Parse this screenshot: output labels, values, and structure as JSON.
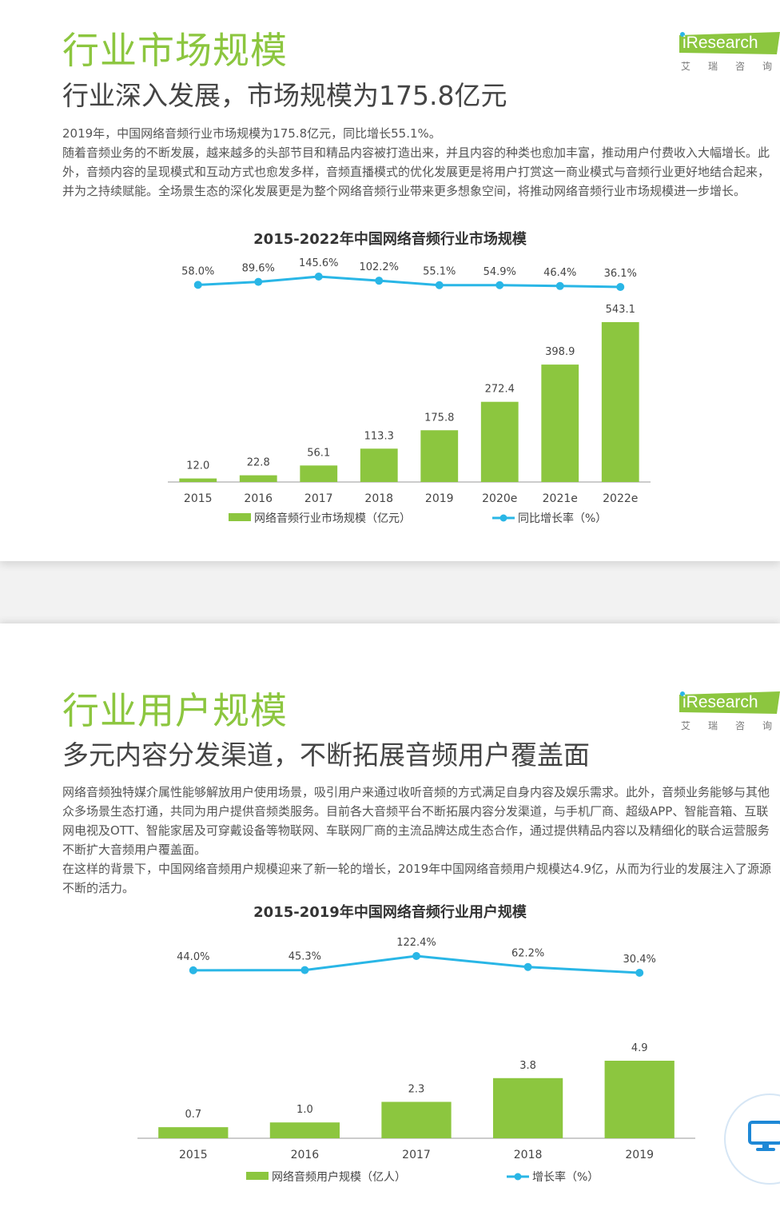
{
  "slide1": {
    "title": "行业市场规模",
    "subtitle": "行业深入发展，市场规模为175.8亿元",
    "paragraphs": [
      "2019年，中国网络音频行业市场规模为175.8亿元，同比增长55.1%。",
      "随着音频业务的不断发展，越来越多的头部节目和精品内容被打造出来，并且内容的种类也愈加丰富，推动用户付费收入大幅增长。此外，音频内容的呈现模式和互动方式也愈发多样，音频直播模式的优化发展更是将用户打赏这一商业模式与音频行业更好地结合起来，并为之持续赋能。全场景生态的深化发展更是为整个网络音频行业带来更多想象空间，将推动网络音频行业市场规模进一步增长。"
    ],
    "logo": {
      "word": "iResearch",
      "cn": "艾瑞咨询"
    }
  },
  "slide2": {
    "title": "行业用户规模",
    "subtitle": "多元内容分发渠道，不断拓展音频用户覆盖面",
    "paragraphs": [
      "网络音频独特媒介属性能够解放用户使用场景，吸引用户来通过收听音频的方式满足自身内容及娱乐需求。此外，音频业务能够与其他众多场景生态打通，共同为用户提供音频类服务。目前各大音频平台不断拓展内容分发渠道，与手机厂商、超级APP、智能音箱、互联网电视及OTT、智能家居及可穿戴设备等物联网、车联网厂商的主流品牌达成生态合作，通过提供精品内容以及精细化的联合运营服务不断扩大音频用户覆盖面。",
      "在这样的背景下，中国网络音频用户规模迎来了新一轮的增长，2019年中国网络音频用户规模达4.9亿，从而为行业的发展注入了源源不断的活力。"
    ],
    "logo": {
      "word": "iResearch",
      "cn": "艾瑞咨询"
    }
  },
  "colors": {
    "bar": "#8cc63f",
    "line": "#29b6e6",
    "title_green": "#8cc63f"
  },
  "float_button": {
    "icon": "monitor-icon"
  },
  "chart_data": [
    {
      "type": "bar",
      "title": "2015-2022年中国网络音频行业市场规模",
      "categories": [
        "2015",
        "2016",
        "2017",
        "2018",
        "2019",
        "2020e",
        "2021e",
        "2022e"
      ],
      "series": [
        {
          "name": "网络音频行业市场规模（亿元）",
          "type": "bar",
          "values": [
            12.0,
            22.8,
            56.1,
            113.3,
            175.8,
            272.4,
            398.9,
            543.1
          ],
          "labels": [
            "12.0",
            "22.8",
            "56.1",
            "113.3",
            "175.8",
            "272.4",
            "398.9",
            "543.1"
          ]
        },
        {
          "name": "同比增长率（%）",
          "type": "line",
          "values": [
            58.0,
            89.6,
            145.6,
            102.2,
            55.1,
            54.9,
            46.4,
            36.1
          ],
          "labels": [
            "58.0%",
            "89.6%",
            "145.6%",
            "102.2%",
            "55.1%",
            "54.9%",
            "46.4%",
            "36.1%"
          ]
        }
      ],
      "legend_position": "bottom"
    },
    {
      "type": "bar",
      "title": "2015-2019年中国网络音频行业用户规模",
      "categories": [
        "2015",
        "2016",
        "2017",
        "2018",
        "2019"
      ],
      "series": [
        {
          "name": "网络音频用户规模（亿人）",
          "type": "bar",
          "values": [
            0.7,
            1.0,
            2.3,
            3.8,
            4.9
          ],
          "labels": [
            "0.7",
            "1.0",
            "2.3",
            "3.8",
            "4.9"
          ]
        },
        {
          "name": "增长率（%）",
          "type": "line",
          "values": [
            44.0,
            45.3,
            122.4,
            62.2,
            30.4
          ],
          "labels": [
            "44.0%",
            "45.3%",
            "122.4%",
            "62.2%",
            "30.4%"
          ]
        }
      ],
      "legend_position": "bottom"
    }
  ]
}
